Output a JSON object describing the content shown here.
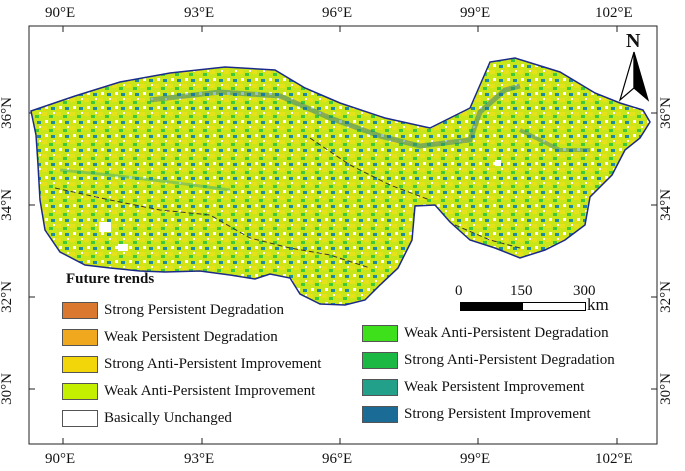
{
  "map": {
    "lon_labels": [
      "90°E",
      "93°E",
      "96°E",
      "99°E",
      "102°E"
    ],
    "lat_labels": [
      "36°N",
      "34°N",
      "32°N",
      "30°N"
    ],
    "north_label": "N",
    "frame_color": "#222222",
    "boundary_color": "#1b2a8a"
  },
  "legend": {
    "title": "Future trends",
    "items": [
      {
        "label": "Strong Persistent Degradation",
        "color": "#d9782e"
      },
      {
        "label": "Weak Persistent Degradation",
        "color": "#f0a81e"
      },
      {
        "label": "Strong Anti-Persistent Improvement",
        "color": "#f2d60a"
      },
      {
        "label": "Weak Anti-Persistent Improvement",
        "color": "#c4f000"
      },
      {
        "label": "Basically Unchanged",
        "color": "#ffffff"
      },
      {
        "label": "Weak Anti-Persistent Degradation",
        "color": "#3ee01c"
      },
      {
        "label": "Strong Anti-Persistent Degradation",
        "color": "#1cb844"
      },
      {
        "label": "Weak Persistent Improvement",
        "color": "#22a08a"
      },
      {
        "label": "Strong Persistent Improvement",
        "color": "#1a6b96"
      }
    ]
  },
  "scale_bar": {
    "labels": [
      "0",
      "150",
      "300"
    ],
    "unit": "km"
  }
}
